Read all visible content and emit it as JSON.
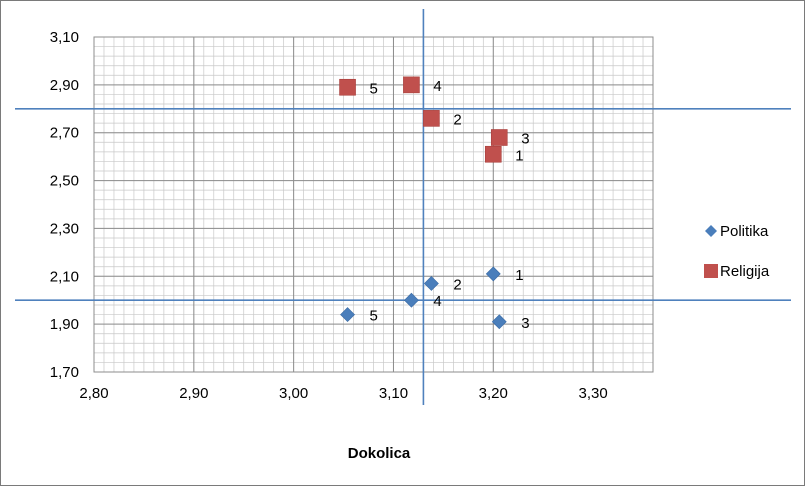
{
  "chart_data": {
    "type": "scatter",
    "xlabel": "Dokolica",
    "ylabel": "",
    "xlim": [
      2.8,
      3.36
    ],
    "ylim": [
      1.7,
      3.1
    ],
    "x_ticks": [
      "2,80",
      "2,90",
      "3,00",
      "3,10",
      "3,20",
      "3,30"
    ],
    "y_ticks": [
      "3,10",
      "2,90",
      "2,70",
      "2,50",
      "2,30",
      "2,10",
      "1,90",
      "1,70"
    ],
    "grid": true,
    "legend_position": "right",
    "reference_lines": {
      "x": [
        3.13
      ],
      "y": [
        2.8,
        2.0
      ]
    },
    "series": [
      {
        "name": "Politika",
        "marker": "diamond",
        "color": "#4a7ebb",
        "points": [
          {
            "label": "1",
            "x": 3.2,
            "y": 2.11
          },
          {
            "label": "2",
            "x": 3.138,
            "y": 2.07
          },
          {
            "label": "3",
            "x": 3.206,
            "y": 1.91
          },
          {
            "label": "4",
            "x": 3.118,
            "y": 2.0
          },
          {
            "label": "5",
            "x": 3.054,
            "y": 1.94
          }
        ]
      },
      {
        "name": "Religija",
        "marker": "square",
        "color": "#c0504d",
        "points": [
          {
            "label": "1",
            "x": 3.2,
            "y": 2.61
          },
          {
            "label": "2",
            "x": 3.138,
            "y": 2.76
          },
          {
            "label": "3",
            "x": 3.206,
            "y": 2.68
          },
          {
            "label": "4",
            "x": 3.118,
            "y": 2.9
          },
          {
            "label": "5",
            "x": 3.054,
            "y": 2.89
          }
        ]
      }
    ]
  }
}
